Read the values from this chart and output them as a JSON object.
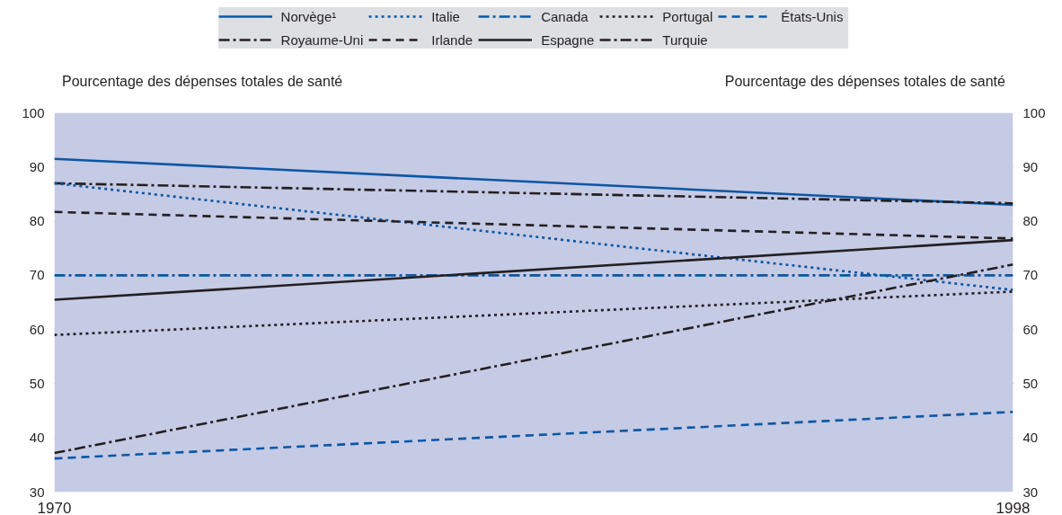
{
  "chart_data": {
    "type": "line",
    "ylabel": "Pourcentage des dépenses totales de santé",
    "y2label": "Pourcentage des dépenses totales de santé",
    "x": [
      1970,
      1998
    ],
    "xlim": [
      1970,
      1998
    ],
    "xticks": [
      1970,
      1998
    ],
    "ylim": [
      30,
      100
    ],
    "yticks": [
      30,
      40,
      50,
      60,
      70,
      80,
      90,
      100
    ],
    "y2lim": [
      30,
      100
    ],
    "y2ticks": [
      30,
      40,
      50,
      60,
      70,
      80,
      90,
      100
    ],
    "grid": "y",
    "legend": "top",
    "series": [
      {
        "name": "Norvège¹",
        "color": "#0a57a4",
        "line_style": "solid",
        "values": [
          91.5,
          83
        ]
      },
      {
        "name": "Royaume-Uni",
        "color": "#231f20",
        "line_style": "dashdot",
        "values": [
          87,
          83.3
        ]
      },
      {
        "name": "Italie",
        "color": "#0a57a4",
        "line_style": "dotted",
        "values": [
          87,
          67.3
        ]
      },
      {
        "name": "Irlande",
        "color": "#231f20",
        "line_style": "dashed",
        "values": [
          81.7,
          76.8
        ]
      },
      {
        "name": "Canada",
        "color": "#0a57a4",
        "line_style": "dashdot",
        "values": [
          70,
          70
        ]
      },
      {
        "name": "Espagne",
        "color": "#231f20",
        "line_style": "solid",
        "values": [
          65.5,
          76.5
        ]
      },
      {
        "name": "Portugal",
        "color": "#231f20",
        "line_style": "dotted",
        "values": [
          59,
          67
        ]
      },
      {
        "name": "Turquie",
        "color": "#231f20",
        "line_style": "dashdot",
        "values": [
          37.2,
          72
        ]
      },
      {
        "name": "États-Unis",
        "color": "#0a57a4",
        "line_style": "dashed",
        "values": [
          36.2,
          44.8
        ]
      }
    ]
  }
}
